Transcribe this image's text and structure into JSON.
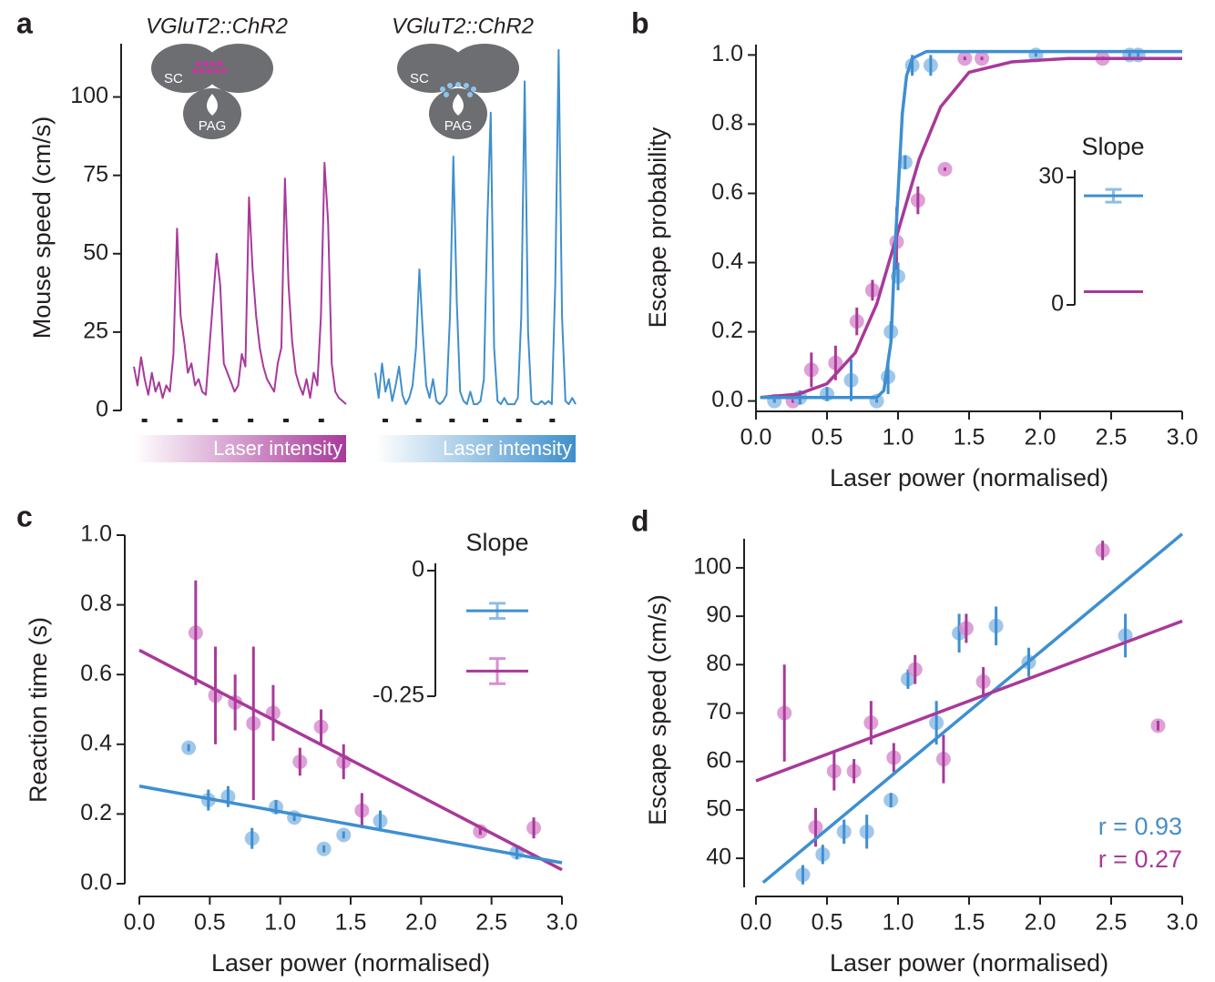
{
  "chart_data": [
    {
      "type": "trace",
      "label": "a",
      "ylabel": "Mouse speed (cm/s)",
      "ylim": [
        0,
        117
      ],
      "yticks": [
        0,
        25,
        50,
        75,
        100
      ],
      "headers": [
        "VGluT2::ChR2",
        "VGluT2::ChR2"
      ],
      "region_labels": [
        [
          "SC",
          "PAG"
        ],
        [
          "SC",
          "PAG"
        ]
      ],
      "bar_labels": [
        "Laser intensity",
        "Laser intensity"
      ],
      "series": [
        {
          "color": "#a8399a",
          "values": [
            14,
            8,
            17,
            10,
            5,
            12,
            6,
            9,
            4,
            8,
            6,
            18,
            58,
            30,
            22,
            12,
            15,
            8,
            10,
            6,
            5,
            20,
            35,
            50,
            40,
            15,
            12,
            9,
            6,
            8,
            18,
            14,
            68,
            45,
            30,
            20,
            14,
            10,
            8,
            6,
            15,
            20,
            74,
            40,
            22,
            12,
            8,
            5,
            10,
            4,
            12,
            8,
            30,
            79,
            60,
            15,
            6,
            4,
            3,
            2
          ]
        },
        {
          "color": "#3f8fcc",
          "values": [
            12,
            4,
            15,
            6,
            10,
            3,
            8,
            14,
            5,
            2,
            4,
            8,
            20,
            45,
            25,
            8,
            4,
            10,
            3,
            2,
            3,
            5,
            30,
            81,
            35,
            6,
            3,
            2,
            6,
            2,
            2,
            3,
            10,
            60,
            95,
            20,
            3,
            2,
            4,
            2,
            2,
            2,
            4,
            30,
            105,
            25,
            3,
            2,
            2,
            3,
            2,
            3,
            2,
            40,
            115,
            30,
            3,
            2,
            4,
            2
          ]
        }
      ]
    },
    {
      "type": "scatter",
      "label": "b",
      "xlabel": "Laser power (normalised)",
      "ylabel": "Escape probability",
      "xlim": [
        0,
        3
      ],
      "ylim": [
        -0.03,
        1.03
      ],
      "xticks": [
        {
          "value": 0,
          "label": "0.0"
        },
        0.5,
        {
          "value": 1,
          "label": "1.0"
        },
        1.5,
        {
          "value": 2,
          "label": "2.0"
        },
        2.5,
        {
          "value": 3,
          "label": "3.0"
        }
      ],
      "yticks": [
        {
          "value": 0,
          "label": "0.0"
        },
        0.2,
        0.4,
        0.6,
        0.8,
        {
          "value": 1,
          "label": "1.0"
        }
      ],
      "series": [
        {
          "color": "#a8399a",
          "point_color": "#d88fcf",
          "x": [
            0.26,
            0.39,
            0.56,
            0.71,
            0.82,
            0.99,
            1.14,
            1.33,
            1.47,
            1.59,
            2.44
          ],
          "values": [
            0,
            0.09,
            0.11,
            0.23,
            0.32,
            0.46,
            0.58,
            0.67,
            0.99,
            0.99,
            0.99
          ],
          "errors": [
            0.005,
            0.05,
            0.05,
            0.04,
            0.03,
            0.1,
            0.04,
            0.005,
            0.005,
            0.005,
            0.005
          ]
        },
        {
          "color": "#3d8fd1",
          "point_color": "#8fbde6",
          "x": [
            0.13,
            0.31,
            0.5,
            0.67,
            0.85,
            0.93,
            0.95,
            1.0,
            1.05,
            1.1,
            1.23,
            1.97,
            2.63,
            2.69
          ],
          "values": [
            0,
            0.01,
            0.02,
            0.06,
            0,
            0.07,
            0.2,
            0.36,
            0.69,
            0.97,
            0.97,
            1.0,
            1.0,
            1.0
          ],
          "errors": [
            0.005,
            0.02,
            0.02,
            0.06,
            0.005,
            0.05,
            0.03,
            0.04,
            0.02,
            0.03,
            0.03,
            0.005,
            0.005,
            0.005
          ]
        }
      ],
      "fits": [
        {
          "color": "#a8399a",
          "x": [
            0.03,
            0.3,
            0.5,
            0.7,
            0.85,
            1.0,
            1.15,
            1.3,
            1.5,
            1.8,
            2.2,
            3.0
          ],
          "values": [
            0.01,
            0.02,
            0.05,
            0.14,
            0.28,
            0.49,
            0.7,
            0.85,
            0.95,
            0.98,
            0.99,
            0.99
          ]
        },
        {
          "color": "#3d8fd1",
          "x": [
            0.03,
            0.85,
            0.9,
            0.95,
            0.98,
            1.0,
            1.03,
            1.06,
            1.1,
            1.2,
            3.0
          ],
          "values": [
            0.01,
            0.01,
            0.03,
            0.17,
            0.45,
            0.6,
            0.83,
            0.94,
            0.99,
            1.01,
            1.01
          ]
        }
      ],
      "inset": {
        "title": "Slope",
        "ylim": [
          0,
          30
        ],
        "yticks": [
          0,
          30
        ],
        "series": [
          {
            "color": "#3d8fd1",
            "point_color": "#8fbde6",
            "value": 25.7,
            "error": 1.5
          },
          {
            "color": "#a8399a",
            "value": 3.1
          }
        ]
      }
    },
    {
      "type": "scatter",
      "label": "c",
      "xlabel": "Laser power (normalised)",
      "ylabel": "Reaction time (s)",
      "xlim": [
        0,
        3
      ],
      "ylim": [
        0,
        1
      ],
      "xticks": [
        {
          "value": 0,
          "label": "0.0"
        },
        0.5,
        {
          "value": 1,
          "label": "1.0"
        },
        1.5,
        {
          "value": 2,
          "label": "2.0"
        },
        2.5,
        {
          "value": 3,
          "label": "3.0"
        }
      ],
      "yticks": [
        {
          "value": 0,
          "label": "0.0"
        },
        0.2,
        0.4,
        0.6,
        0.8,
        {
          "value": 1,
          "label": "1.0"
        }
      ],
      "series": [
        {
          "color": "#3d8fd1",
          "point_color": "#8fbde6",
          "x": [
            0.35,
            0.49,
            0.63,
            0.8,
            0.97,
            1.1,
            1.31,
            1.45,
            1.71,
            2.68
          ],
          "values": [
            0.39,
            0.24,
            0.25,
            0.13,
            0.22,
            0.19,
            0.1,
            0.14,
            0.18,
            0.09
          ],
          "errors": [
            0.01,
            0.03,
            0.03,
            0.03,
            0.02,
            0.01,
            0.01,
            0.01,
            0.03,
            0.02
          ]
        },
        {
          "color": "#a8399a",
          "point_color": "#d88fcf",
          "x": [
            0.4,
            0.54,
            0.68,
            0.81,
            0.95,
            1.14,
            1.29,
            1.45,
            1.58,
            2.42,
            2.8
          ],
          "values": [
            0.72,
            0.54,
            0.52,
            0.46,
            0.49,
            0.35,
            0.45,
            0.35,
            0.21,
            0.15,
            0.16
          ],
          "errors": [
            0.15,
            0.14,
            0.08,
            0.22,
            0.08,
            0.04,
            0.05,
            0.05,
            0.05,
            0.01,
            0.03
          ]
        }
      ],
      "fits": [
        {
          "color": "#a8399a",
          "x": [
            0,
            3
          ],
          "values": [
            0.67,
            0.04
          ]
        },
        {
          "color": "#3d8fd1",
          "x": [
            0,
            3
          ],
          "values": [
            0.28,
            0.06
          ]
        }
      ],
      "inset": {
        "title": "Slope",
        "ylim": [
          -0.25,
          0
        ],
        "yticks": [
          -0.25,
          0
        ],
        "series": [
          {
            "color": "#3d8fd1",
            "point_color": "#8fbde6",
            "value": -0.08,
            "error": 0.015
          },
          {
            "color": "#a8399a",
            "point_color": "#d88fcf",
            "value": -0.2,
            "error": 0.025
          }
        ]
      }
    },
    {
      "type": "scatter",
      "label": "d",
      "xlabel": "Laser power (normalised)",
      "ylabel": "Escape  speed (cm/s)",
      "xlim": [
        0,
        3
      ],
      "ylim": [
        34,
        106
      ],
      "xticks": [
        {
          "value": 0,
          "label": "0.0"
        },
        0.5,
        {
          "value": 1,
          "label": "1.0"
        },
        1.5,
        {
          "value": 2,
          "label": "2.0"
        },
        2.5,
        {
          "value": 3,
          "label": "3.0"
        }
      ],
      "yticks": [
        40,
        50,
        60,
        70,
        80,
        90,
        100
      ],
      "series": [
        {
          "color": "#3d8fd1",
          "point_color": "#8fbde6",
          "x": [
            0.33,
            0.47,
            0.62,
            0.78,
            0.95,
            1.07,
            1.27,
            1.43,
            1.69,
            1.92,
            2.6
          ],
          "values": [
            36.6,
            40.8,
            45.5,
            45.5,
            52,
            77,
            68,
            86.5,
            88,
            80.5,
            86
          ],
          "errors": [
            2,
            2,
            2.5,
            3.5,
            1.5,
            2,
            4.5,
            4,
            4,
            3,
            4.5
          ]
        },
        {
          "color": "#a8399a",
          "point_color": "#d88fcf",
          "x": [
            0.2,
            0.42,
            0.55,
            0.69,
            0.81,
            0.97,
            1.12,
            1.32,
            1.48,
            1.6,
            2.44,
            2.83
          ],
          "values": [
            70,
            46.4,
            58,
            58,
            68,
            60.8,
            79,
            60.5,
            87.5,
            76.5,
            103.6,
            67.4
          ],
          "errors": [
            10,
            4,
            4,
            2.5,
            4.5,
            3,
            3,
            5,
            3,
            3,
            2,
            1
          ]
        }
      ],
      "fits": [
        {
          "color": "#3d8fd1",
          "x": [
            0.05,
            3
          ],
          "values": [
            35,
            107
          ]
        },
        {
          "color": "#a8399a",
          "x": [
            0,
            3
          ],
          "values": [
            56,
            89
          ]
        }
      ],
      "annotations": [
        {
          "text": "r = 0.93",
          "color": "#4a8fc6"
        },
        {
          "text": "r = 0.27",
          "color": "#a8399a"
        }
      ]
    }
  ]
}
